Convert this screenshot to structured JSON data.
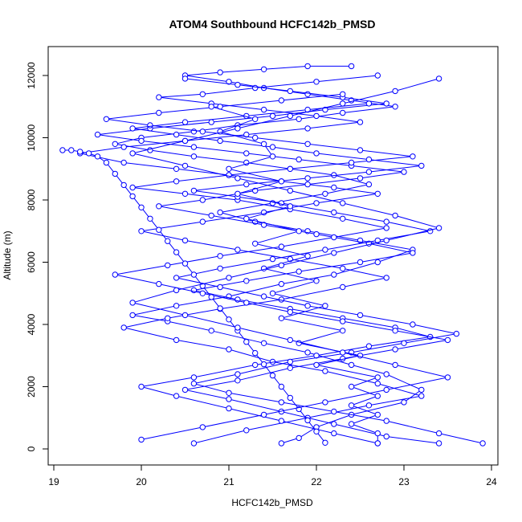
{
  "chart_data": {
    "type": "line",
    "title": "ATOM4 Southbound HCFC142b_PMSD",
    "xlabel": "HCFC142b_PMSD",
    "ylabel": "Altitude (m)",
    "xlim": [
      19,
      24
    ],
    "ylim": [
      0,
      12000
    ],
    "xticks": [
      19,
      20,
      21,
      22,
      23,
      24
    ],
    "yticks": [
      0,
      2000,
      4000,
      6000,
      8000,
      10000,
      12000
    ],
    "grid": false,
    "legend": "none",
    "series_color": "#0000ff",
    "marker": "open-circle",
    "series": [
      {
        "x": [
          21.6,
          21.8,
          22.0,
          22.4,
          23.0,
          23.2,
          22.8,
          22.4,
          21.9,
          21.4,
          20.8,
          20.3,
          19.9,
          20.4,
          21.0,
          21.6,
          22.2,
          22.7,
          23.1,
          22.5,
          21.9,
          21.3,
          20.9,
          21.5,
          22.1,
          22.6,
          22.2,
          21.7,
          21.2,
          20.6,
          20.1,
          19.7,
          20.0,
          20.6,
          21.1,
          21.8,
          22.3,
          22.9,
          22.4,
          21.9,
          21.4,
          21.0,
          20.5,
          20.9,
          21.4,
          21.9,
          22.4
        ],
        "y": [
          180,
          350,
          700,
          1100,
          1500,
          1900,
          2400,
          2700,
          3100,
          3400,
          3800,
          4100,
          4300,
          4600,
          4900,
          5300,
          5600,
          6000,
          6400,
          6700,
          7000,
          7300,
          7600,
          7900,
          8200,
          8500,
          8800,
          9000,
          9200,
          9400,
          9600,
          9800,
          10000,
          10200,
          10400,
          10600,
          10800,
          11000,
          11200,
          11400,
          11600,
          11800,
          12000,
          12100,
          12200,
          12300,
          12300
        ]
      },
      {
        "x": [
          20.6,
          21.2,
          21.9,
          22.6,
          23.2,
          22.7,
          22.1,
          21.5,
          21.0,
          20.4,
          19.8,
          20.3,
          20.9,
          21.6,
          22.3,
          22.8,
          22.3,
          21.7,
          21.1,
          20.5,
          20.0,
          20.7,
          21.4,
          22.0,
          22.7,
          22.2,
          21.6,
          21.0,
          20.4,
          19.8,
          19.3,
          19.8,
          20.5,
          21.2,
          21.9,
          22.5,
          22.0,
          21.4,
          20.8,
          20.2,
          20.7,
          21.3,
          22.0,
          22.7
        ],
        "y": [
          180,
          600,
          1000,
          1400,
          1700,
          2100,
          2500,
          2800,
          3200,
          3500,
          3900,
          4200,
          4500,
          4800,
          5200,
          5500,
          5800,
          6100,
          6400,
          6700,
          7000,
          7300,
          7600,
          7900,
          8200,
          8400,
          8600,
          8800,
          9000,
          9200,
          9500,
          9700,
          9900,
          10100,
          10300,
          10500,
          10700,
          10900,
          11100,
          11300,
          11400,
          11600,
          11800,
          12000
        ]
      },
      {
        "x": [
          22.7,
          22.2,
          21.6,
          21.0,
          20.4,
          20.0,
          20.6,
          21.3,
          22.0,
          22.6,
          23.3,
          22.9,
          22.3,
          21.7,
          21.1,
          20.6,
          21.2,
          21.8,
          22.5,
          23.1,
          22.6,
          22.0,
          21.4,
          20.8,
          20.2,
          20.7,
          21.3,
          21.9,
          22.5,
          23.0,
          22.4,
          21.8,
          21.2,
          20.6,
          20.0,
          19.5,
          20.1,
          20.8,
          21.5,
          22.1,
          22.8,
          22.3,
          21.7,
          21.1,
          20.5
        ],
        "y": [
          180,
          500,
          900,
          1300,
          1700,
          2000,
          2300,
          2700,
          3000,
          3300,
          3600,
          3900,
          4200,
          4500,
          4800,
          5100,
          5400,
          5700,
          6000,
          6300,
          6600,
          6900,
          7200,
          7500,
          7800,
          8000,
          8300,
          8500,
          8700,
          8900,
          9100,
          9300,
          9500,
          9700,
          9900,
          10100,
          10300,
          10500,
          10700,
          10900,
          11100,
          11300,
          11500,
          11700,
          11900
        ]
      },
      {
        "x": [
          23.4,
          22.8,
          22.2,
          21.6,
          21.0,
          20.5,
          21.1,
          21.7,
          22.3,
          22.9,
          23.5,
          22.9,
          22.3,
          21.7,
          21.2,
          20.7,
          20.2,
          19.7,
          20.3,
          20.9,
          21.6,
          22.2,
          22.8,
          22.3,
          21.7,
          21.1,
          20.5,
          19.9,
          20.4,
          21.0,
          21.7,
          22.4,
          23.1,
          22.5,
          21.9,
          21.3,
          20.7,
          20.1,
          19.6,
          20.2,
          20.9,
          21.6,
          22.3
        ],
        "y": [
          180,
          400,
          800,
          1200,
          1600,
          1900,
          2200,
          2600,
          2900,
          3200,
          3500,
          3800,
          4100,
          4400,
          4700,
          5000,
          5300,
          5600,
          5900,
          6200,
          6500,
          6800,
          7100,
          7400,
          7700,
          8000,
          8200,
          8400,
          8600,
          8800,
          9000,
          9200,
          9400,
          9600,
          9800,
          10000,
          10200,
          10400,
          10600,
          10800,
          11000,
          11200,
          11400
        ]
      },
      {
        "x": [
          23.9,
          23.4,
          22.8,
          22.2,
          21.6,
          21.0,
          20.6,
          21.1,
          21.7,
          22.4,
          23.0,
          23.6,
          23.1,
          22.5,
          21.9,
          21.4,
          20.9,
          20.4,
          20.9,
          21.5,
          22.1,
          22.7,
          23.3,
          22.8,
          22.2,
          21.6,
          21.1,
          20.6,
          21.2,
          21.9,
          22.6,
          23.2,
          22.6,
          22.0,
          21.5,
          20.9,
          20.4,
          19.9,
          20.5,
          21.2,
          21.9,
          22.6
        ],
        "y": [
          180,
          500,
          900,
          1200,
          1500,
          1800,
          2100,
          2400,
          2800,
          3100,
          3400,
          3700,
          4000,
          4300,
          4600,
          4900,
          5200,
          5500,
          5800,
          6100,
          6400,
          6700,
          7000,
          7300,
          7600,
          7900,
          8100,
          8300,
          8500,
          8700,
          8900,
          9100,
          9300,
          9500,
          9700,
          9900,
          10100,
          10300,
          10500,
          10700,
          10900,
          11100
        ]
      },
      {
        "x": [
          22.7,
          22.7,
          22.4,
          22.7,
          22.4,
          22.7,
          22.4,
          22.7,
          22.0,
          22.5,
          21.8,
          22.3,
          21.6,
          22.1,
          21.5,
          22.0,
          21.4,
          21.9,
          21.3,
          21.8,
          21.2,
          21.7,
          21.1,
          21.6,
          21.0,
          21.5,
          21.4,
          20.9,
          21.3,
          20.8
        ],
        "y": [
          180,
          500,
          800,
          1100,
          1400,
          1700,
          2000,
          2300,
          2700,
          3000,
          3400,
          3800,
          4200,
          4600,
          5000,
          5400,
          5800,
          6200,
          6600,
          7000,
          7400,
          7800,
          8200,
          8600,
          9000,
          9400,
          9800,
          10200,
          10600,
          11000
        ]
      },
      {
        "x": [
          22.1,
          22.0,
          21.9,
          21.8,
          21.7,
          21.6,
          21.5,
          21.4,
          21.3,
          21.2,
          21.1,
          21.0,
          20.9,
          20.8,
          20.7,
          20.6,
          20.5,
          20.4,
          20.3,
          20.2,
          20.1,
          20.0,
          19.9,
          19.8,
          19.7,
          19.6,
          19.5,
          19.4,
          19.3,
          19.2,
          19.1
        ],
        "y": [
          200,
          560,
          920,
          1280,
          1640,
          2000,
          2360,
          2720,
          3080,
          3440,
          3800,
          4160,
          4520,
          4880,
          5240,
          5600,
          5960,
          6320,
          6680,
          7040,
          7400,
          7760,
          8120,
          8480,
          8840,
          9200,
          9400,
          9500,
          9550,
          9600,
          9600
        ]
      },
      {
        "x": [
          20.0,
          20.7,
          21.4,
          22.1,
          22.8,
          23.5,
          22.9,
          22.3,
          21.7,
          21.1,
          20.5,
          19.9,
          20.4,
          21.0,
          21.6,
          22.2,
          22.8,
          23.4,
          22.9,
          22.3,
          21.7,
          21.1,
          20.5,
          19.9,
          20.5,
          21.1,
          21.7,
          22.3,
          22.9,
          23.4
        ],
        "y": [
          300,
          700,
          1100,
          1500,
          1900,
          2300,
          2700,
          3100,
          3500,
          3900,
          4300,
          4700,
          5100,
          5500,
          5900,
          6300,
          6700,
          7100,
          7500,
          7900,
          8300,
          8700,
          9100,
          9500,
          9900,
          10300,
          10700,
          11100,
          11500,
          11900
        ]
      }
    ]
  }
}
